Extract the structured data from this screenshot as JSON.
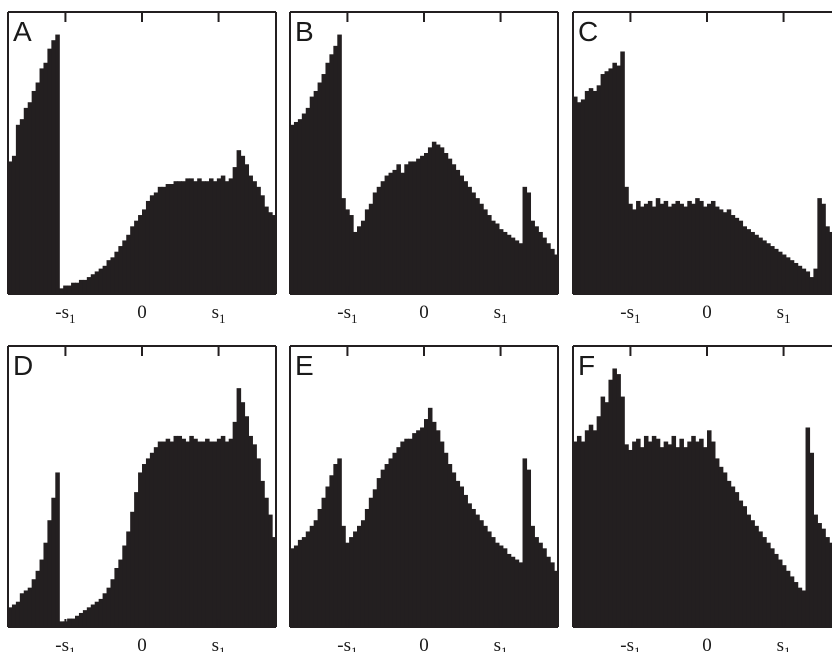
{
  "figure": {
    "bar_color": "#231f20",
    "frame_color": "#231f20",
    "background": "#ffffff"
  },
  "chart_data": [
    {
      "type": "bar",
      "label": "A",
      "xticks": [
        {
          "value": -1,
          "text": "-s",
          "sub": "1"
        },
        {
          "value": 0,
          "text": "0",
          "sub": ""
        },
        {
          "value": 1,
          "text": "s",
          "sub": "1"
        }
      ],
      "xlim": [
        -1.75,
        1.75
      ],
      "ylim": [
        0,
        1
      ],
      "values": [
        0.47,
        0.49,
        0.6,
        0.62,
        0.66,
        0.68,
        0.72,
        0.75,
        0.8,
        0.82,
        0.87,
        0.9,
        0.92,
        0.02,
        0.03,
        0.03,
        0.04,
        0.04,
        0.05,
        0.05,
        0.06,
        0.07,
        0.08,
        0.09,
        0.1,
        0.12,
        0.13,
        0.15,
        0.17,
        0.19,
        0.21,
        0.24,
        0.26,
        0.28,
        0.3,
        0.33,
        0.35,
        0.36,
        0.38,
        0.38,
        0.39,
        0.39,
        0.4,
        0.4,
        0.4,
        0.41,
        0.41,
        0.4,
        0.41,
        0.4,
        0.4,
        0.41,
        0.4,
        0.41,
        0.42,
        0.4,
        0.41,
        0.45,
        0.51,
        0.49,
        0.46,
        0.42,
        0.4,
        0.38,
        0.35,
        0.31,
        0.29,
        0.28
      ]
    },
    {
      "type": "bar",
      "label": "B",
      "xticks": [
        {
          "value": -1,
          "text": "-s",
          "sub": "1"
        },
        {
          "value": 0,
          "text": "0",
          "sub": ""
        },
        {
          "value": 1,
          "text": "s",
          "sub": "1"
        }
      ],
      "xlim": [
        -1.75,
        1.75
      ],
      "ylim": [
        0,
        1
      ],
      "values": [
        0.6,
        0.61,
        0.62,
        0.64,
        0.66,
        0.7,
        0.72,
        0.75,
        0.78,
        0.82,
        0.85,
        0.88,
        0.92,
        0.34,
        0.3,
        0.28,
        0.22,
        0.24,
        0.26,
        0.3,
        0.32,
        0.36,
        0.38,
        0.4,
        0.42,
        0.43,
        0.44,
        0.46,
        0.43,
        0.46,
        0.47,
        0.47,
        0.48,
        0.49,
        0.5,
        0.52,
        0.54,
        0.53,
        0.52,
        0.5,
        0.48,
        0.46,
        0.44,
        0.42,
        0.4,
        0.38,
        0.36,
        0.34,
        0.32,
        0.3,
        0.28,
        0.26,
        0.25,
        0.23,
        0.22,
        0.21,
        0.2,
        0.19,
        0.18,
        0.38,
        0.36,
        0.26,
        0.24,
        0.22,
        0.2,
        0.18,
        0.16,
        0.14
      ]
    },
    {
      "type": "bar",
      "label": "C",
      "xticks": [
        {
          "value": -1,
          "text": "-s",
          "sub": "1"
        },
        {
          "value": 0,
          "text": "0",
          "sub": ""
        },
        {
          "value": 1,
          "text": "s",
          "sub": "1"
        }
      ],
      "xlim": [
        -1.75,
        1.75
      ],
      "ylim": [
        0,
        1
      ],
      "values": [
        0.7,
        0.68,
        0.69,
        0.72,
        0.73,
        0.72,
        0.74,
        0.78,
        0.79,
        0.8,
        0.82,
        0.81,
        0.86,
        0.38,
        0.32,
        0.3,
        0.33,
        0.31,
        0.32,
        0.33,
        0.31,
        0.34,
        0.32,
        0.33,
        0.31,
        0.32,
        0.33,
        0.32,
        0.31,
        0.33,
        0.32,
        0.34,
        0.33,
        0.31,
        0.32,
        0.33,
        0.31,
        0.3,
        0.29,
        0.3,
        0.28,
        0.27,
        0.26,
        0.24,
        0.23,
        0.22,
        0.21,
        0.2,
        0.19,
        0.18,
        0.17,
        0.16,
        0.15,
        0.14,
        0.13,
        0.12,
        0.11,
        0.1,
        0.09,
        0.08,
        0.06,
        0.09,
        0.34,
        0.32,
        0.24,
        0.22,
        0.19,
        0.17
      ]
    },
    {
      "type": "bar",
      "label": "D",
      "xticks": [
        {
          "value": -1,
          "text": "-s",
          "sub": "1"
        },
        {
          "value": 0,
          "text": "0",
          "sub": ""
        },
        {
          "value": 1,
          "text": "s",
          "sub": "1"
        }
      ],
      "xlim": [
        -1.75,
        1.75
      ],
      "ylim": [
        0,
        1
      ],
      "values": [
        0.07,
        0.08,
        0.09,
        0.12,
        0.13,
        0.14,
        0.17,
        0.2,
        0.24,
        0.3,
        0.38,
        0.46,
        0.55,
        0.02,
        0.02,
        0.03,
        0.03,
        0.04,
        0.05,
        0.06,
        0.07,
        0.08,
        0.09,
        0.1,
        0.12,
        0.14,
        0.17,
        0.21,
        0.24,
        0.29,
        0.34,
        0.41,
        0.48,
        0.55,
        0.58,
        0.6,
        0.62,
        0.64,
        0.66,
        0.66,
        0.67,
        0.66,
        0.68,
        0.68,
        0.67,
        0.66,
        0.68,
        0.67,
        0.66,
        0.66,
        0.67,
        0.66,
        0.66,
        0.67,
        0.68,
        0.66,
        0.67,
        0.73,
        0.85,
        0.8,
        0.75,
        0.68,
        0.65,
        0.6,
        0.52,
        0.46,
        0.4,
        0.32
      ]
    },
    {
      "type": "bar",
      "label": "E",
      "xticks": [
        {
          "value": -1,
          "text": "-s",
          "sub": "1"
        },
        {
          "value": 0,
          "text": "0",
          "sub": ""
        },
        {
          "value": 1,
          "text": "s",
          "sub": "1"
        }
      ],
      "xlim": [
        -1.75,
        1.75
      ],
      "ylim": [
        0,
        1
      ],
      "values": [
        0.28,
        0.29,
        0.31,
        0.32,
        0.34,
        0.36,
        0.38,
        0.42,
        0.46,
        0.5,
        0.54,
        0.58,
        0.6,
        0.36,
        0.3,
        0.32,
        0.34,
        0.36,
        0.38,
        0.42,
        0.46,
        0.49,
        0.53,
        0.56,
        0.58,
        0.6,
        0.62,
        0.64,
        0.66,
        0.67,
        0.67,
        0.69,
        0.7,
        0.71,
        0.74,
        0.78,
        0.73,
        0.7,
        0.66,
        0.62,
        0.58,
        0.55,
        0.52,
        0.5,
        0.47,
        0.44,
        0.42,
        0.4,
        0.38,
        0.36,
        0.34,
        0.32,
        0.3,
        0.29,
        0.28,
        0.26,
        0.25,
        0.24,
        0.23,
        0.6,
        0.56,
        0.36,
        0.32,
        0.3,
        0.28,
        0.25,
        0.23,
        0.2
      ]
    },
    {
      "type": "bar",
      "label": "F",
      "xticks": [
        {
          "value": -1,
          "text": "-s",
          "sub": "1"
        },
        {
          "value": 0,
          "text": "0",
          "sub": ""
        },
        {
          "value": 1,
          "text": "s",
          "sub": "1"
        }
      ],
      "xlim": [
        -1.75,
        1.75
      ],
      "ylim": [
        0,
        1
      ],
      "values": [
        0.66,
        0.68,
        0.66,
        0.7,
        0.72,
        0.7,
        0.75,
        0.82,
        0.8,
        0.88,
        0.92,
        0.9,
        0.82,
        0.65,
        0.63,
        0.66,
        0.67,
        0.64,
        0.68,
        0.66,
        0.68,
        0.67,
        0.64,
        0.66,
        0.65,
        0.68,
        0.64,
        0.67,
        0.64,
        0.66,
        0.68,
        0.66,
        0.67,
        0.64,
        0.7,
        0.66,
        0.6,
        0.57,
        0.55,
        0.52,
        0.5,
        0.48,
        0.45,
        0.43,
        0.4,
        0.38,
        0.36,
        0.34,
        0.32,
        0.3,
        0.28,
        0.26,
        0.24,
        0.22,
        0.2,
        0.18,
        0.16,
        0.14,
        0.13,
        0.71,
        0.62,
        0.4,
        0.37,
        0.35,
        0.32,
        0.3,
        0.28,
        0.26
      ]
    }
  ]
}
